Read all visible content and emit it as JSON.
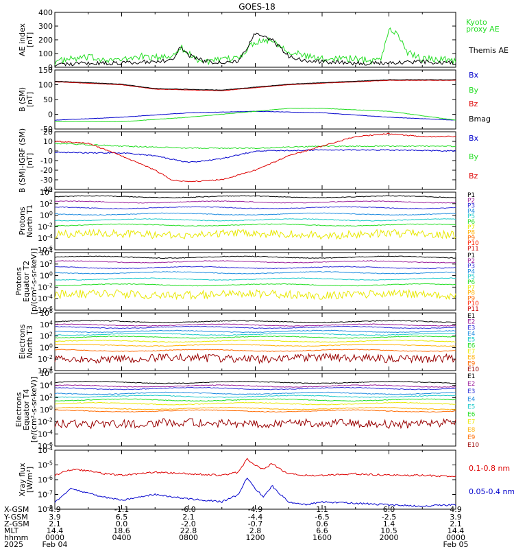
{
  "title": "GOES-18",
  "colors": {
    "axis": "#000000",
    "green": "#22dd22",
    "blue": "#0000cc",
    "red": "#dd0000",
    "black": "#000000"
  },
  "chart_data": [
    {
      "type": "line",
      "panel": "ae_index",
      "ylabel": [
        "AE index",
        "[nT]"
      ],
      "ylim": [
        0,
        400
      ],
      "yticks": [
        "400",
        "300",
        "200",
        "100",
        "0"
      ],
      "legend": [
        {
          "name": "Kyoto proxy AE",
          "lines": [
            "Kyoto",
            "proxy AE"
          ],
          "color": "#22dd22"
        },
        {
          "name": "Themis AE",
          "lines": [
            "Themis AE"
          ],
          "color": "#000000"
        }
      ],
      "series": [
        {
          "name": "Kyoto proxy AE",
          "color": "#22dd22",
          "x": [
            0,
            1,
            2,
            3,
            4,
            5,
            6,
            7,
            7.5,
            8,
            8.5,
            9,
            10,
            11,
            12,
            13,
            14,
            15,
            16,
            17,
            18,
            19,
            19.5,
            20,
            20.5,
            21,
            22,
            23,
            24
          ],
          "y": [
            40,
            60,
            70,
            60,
            50,
            80,
            70,
            80,
            150,
            100,
            60,
            40,
            50,
            70,
            190,
            200,
            120,
            80,
            60,
            70,
            60,
            50,
            60,
            270,
            250,
            120,
            60,
            60,
            50
          ],
          "jitter": 25
        },
        {
          "name": "Themis AE",
          "color": "#000000",
          "x": [
            0,
            2,
            4,
            5,
            6,
            7,
            7.5,
            8,
            9,
            10,
            11,
            12,
            13,
            14,
            15,
            16,
            18,
            20,
            22,
            24
          ],
          "y": [
            20,
            30,
            30,
            40,
            40,
            50,
            140,
            90,
            40,
            40,
            40,
            250,
            200,
            80,
            50,
            40,
            30,
            30,
            40,
            30
          ],
          "jitter": 15
        }
      ]
    },
    {
      "type": "line",
      "panel": "b_sm",
      "ylabel": [
        "B (SM)",
        "[nT]"
      ],
      "ylim": [
        -50,
        150
      ],
      "yticks": [
        "150",
        "100",
        "50",
        "0",
        "-50"
      ],
      "legend": [
        {
          "name": "Bx",
          "color": "#0000cc"
        },
        {
          "name": "By",
          "color": "#22dd22"
        },
        {
          "name": "Bz",
          "color": "#dd0000"
        },
        {
          "name": "Bmag",
          "color": "#000000"
        }
      ],
      "series": [
        {
          "name": "Bx",
          "color": "#0000cc",
          "x": [
            0,
            4,
            8,
            12,
            16,
            20,
            24
          ],
          "y": [
            -20,
            -10,
            5,
            10,
            5,
            -10,
            -20
          ]
        },
        {
          "name": "By",
          "color": "#22dd22",
          "x": [
            0,
            4,
            8,
            12,
            14,
            16,
            20,
            24
          ],
          "y": [
            -25,
            -25,
            -10,
            10,
            20,
            20,
            10,
            -20
          ]
        },
        {
          "name": "Bz",
          "color": "#dd0000",
          "x": [
            0,
            4,
            6,
            10,
            14,
            18,
            20,
            24
          ],
          "y": [
            110,
            100,
            85,
            80,
            100,
            110,
            115,
            115
          ]
        },
        {
          "name": "Bmag",
          "color": "#000000",
          "x": [
            0,
            4,
            6,
            10,
            14,
            18,
            20,
            24
          ],
          "y": [
            112,
            102,
            87,
            82,
            102,
            112,
            117,
            117
          ]
        }
      ]
    },
    {
      "type": "line",
      "panel": "b_minus_igrf",
      "ylabel": [
        "B (SM)-IGRF (SM)",
        "[nT]"
      ],
      "ylim": [
        -40,
        20
      ],
      "yticks": [
        "20",
        "10",
        "0",
        "-10",
        "-20",
        "-30",
        "-40"
      ],
      "legend": [
        {
          "name": "Bx",
          "color": "#0000cc"
        },
        {
          "name": "By",
          "color": "#22dd22"
        },
        {
          "name": "Bz",
          "color": "#dd0000"
        }
      ],
      "series": [
        {
          "name": "Bx",
          "color": "#0000cc",
          "x": [
            0,
            2,
            4,
            6,
            8,
            10,
            12,
            16,
            20,
            24
          ],
          "y": [
            -1,
            -2,
            -2,
            -5,
            -12,
            -8,
            0,
            1,
            1,
            0
          ]
        },
        {
          "name": "By",
          "color": "#22dd22",
          "x": [
            0,
            4,
            8,
            12,
            16,
            20,
            24
          ],
          "y": [
            8,
            5,
            3,
            3,
            5,
            5,
            5
          ]
        },
        {
          "name": "Bz",
          "color": "#dd0000",
          "x": [
            0,
            2,
            4,
            6,
            7,
            8,
            10,
            12,
            14,
            16,
            18,
            20,
            22,
            24
          ],
          "y": [
            10,
            8,
            -5,
            -20,
            -30,
            -32,
            -30,
            -20,
            -5,
            5,
            15,
            18,
            15,
            15
          ]
        }
      ]
    },
    {
      "type": "line",
      "panel": "protons_t1",
      "ylabel": [
        "Protons",
        "North T1"
      ],
      "log": true,
      "ylim_exp": [
        -6,
        4
      ],
      "yticks": [
        "10^4",
        "10^2",
        "10^0",
        "10^-2",
        "10^-4",
        "10^-6"
      ],
      "legend": [
        "P1",
        "P2",
        "P3",
        "P4",
        "P5",
        "P6",
        "P7",
        "P8",
        "P9",
        "P10",
        "P11"
      ],
      "series": [
        {
          "name": "P1",
          "color": "#000000",
          "exp": 3.2
        },
        {
          "name": "P2",
          "color": "#9b1f9b",
          "exp": 2.3
        },
        {
          "name": "P3",
          "color": "#2b2bd6",
          "exp": 1.3
        },
        {
          "name": "P4",
          "color": "#1e8be0",
          "exp": 0.2
        },
        {
          "name": "P5",
          "color": "#19c9c9",
          "exp": -0.8
        },
        {
          "name": "P6",
          "color": "#22dd22",
          "exp": -1.7
        },
        {
          "name": "P7",
          "color": "#e8e800",
          "exp": -3.0,
          "noisy": true
        },
        {
          "name": "P8",
          "color": "#ffb000",
          "exp": -99
        },
        {
          "name": "P9",
          "color": "#ff6a00",
          "exp": -99
        },
        {
          "name": "P10",
          "color": "#ff2200",
          "exp": -99
        },
        {
          "name": "P11",
          "color": "#cc0000",
          "exp": -99
        }
      ]
    },
    {
      "type": "line",
      "panel": "protons_t2",
      "ylabel": [
        "Protons",
        "Equator T2",
        "[p/(cm²-s-sr-keV)]"
      ],
      "log": true,
      "ylim_exp": [
        -6,
        4
      ],
      "yticks": [
        "10^4",
        "10^2",
        "10^0",
        "10^-2",
        "10^-4",
        "10^-6"
      ],
      "legend": [
        "P1",
        "P2",
        "P3",
        "P4",
        "P5",
        "P6",
        "P7",
        "P8",
        "P9",
        "P10",
        "P11"
      ],
      "series": [
        {
          "name": "P1",
          "color": "#000000",
          "exp": 3.2
        },
        {
          "name": "P2",
          "color": "#9b1f9b",
          "exp": 2.4
        },
        {
          "name": "P3",
          "color": "#2b2bd6",
          "exp": 1.4
        },
        {
          "name": "P4",
          "color": "#1e8be0",
          "exp": 0.5
        },
        {
          "name": "P5",
          "color": "#19c9c9",
          "exp": -0.6
        },
        {
          "name": "P6",
          "color": "#22dd22",
          "exp": -1.6
        },
        {
          "name": "P7",
          "color": "#e8e800",
          "exp": -3.0,
          "noisy": true
        },
        {
          "name": "P8",
          "color": "#ffb000",
          "exp": -99
        },
        {
          "name": "P9",
          "color": "#ff6a00",
          "exp": -99
        },
        {
          "name": "P10",
          "color": "#ff2200",
          "exp": -99
        },
        {
          "name": "P11",
          "color": "#cc0000",
          "exp": -99
        }
      ]
    },
    {
      "type": "line",
      "panel": "electrons_t3",
      "ylabel": [
        "Electrons",
        "North T3"
      ],
      "log": true,
      "ylim_exp": [
        -4,
        6
      ],
      "yticks": [
        "10^6",
        "10^4",
        "10^2",
        "10^0",
        "10^-2",
        "10^-4"
      ],
      "legend": [
        "E1",
        "E2",
        "E3",
        "E4",
        "E5",
        "E6",
        "E7",
        "E8",
        "E9",
        "E10"
      ],
      "series": [
        {
          "name": "E1",
          "color": "#000000",
          "exp": 4.5
        },
        {
          "name": "E2",
          "color": "#9b1f9b",
          "exp": 3.9
        },
        {
          "name": "E3",
          "color": "#2b2bd6",
          "exp": 3.5
        },
        {
          "name": "E4",
          "color": "#1e8be0",
          "exp": 2.8
        },
        {
          "name": "E5",
          "color": "#19c9c9",
          "exp": 2.3
        },
        {
          "name": "E6",
          "color": "#22dd22",
          "exp": 1.8
        },
        {
          "name": "E7",
          "color": "#e8e800",
          "exp": 1.1
        },
        {
          "name": "E8",
          "color": "#ffb000",
          "exp": 0.4
        },
        {
          "name": "E9",
          "color": "#ff6a00",
          "exp": -0.5
        },
        {
          "name": "E10",
          "color": "#990000",
          "exp": -1.6,
          "noisy": true
        }
      ]
    },
    {
      "type": "line",
      "panel": "electrons_t4",
      "ylabel": [
        "Electrons",
        "Equator T4",
        "[e/(cm²-s-sr-keV)]"
      ],
      "log": true,
      "ylim_exp": [
        -6,
        6
      ],
      "yticks": [
        "10^6",
        "10^4",
        "10^2",
        "10^0",
        "10^-2",
        "10^-4",
        "10^-6"
      ],
      "legend": [
        "E1",
        "E2",
        "E3",
        "E4",
        "E5",
        "E6",
        "E7",
        "E8",
        "E9",
        "E10"
      ],
      "series": [
        {
          "name": "E1",
          "color": "#000000",
          "exp": 4.5
        },
        {
          "name": "E2",
          "color": "#9b1f9b",
          "exp": 3.9
        },
        {
          "name": "E3",
          "color": "#2b2bd6",
          "exp": 3.5
        },
        {
          "name": "E4",
          "color": "#1e8be0",
          "exp": 2.7
        },
        {
          "name": "E5",
          "color": "#19c9c9",
          "exp": 2.2
        },
        {
          "name": "E6",
          "color": "#22dd22",
          "exp": 1.6
        },
        {
          "name": "E7",
          "color": "#e8e800",
          "exp": 1.0
        },
        {
          "name": "E8",
          "color": "#ffb000",
          "exp": 0.2
        },
        {
          "name": "E9",
          "color": "#ff6a00",
          "exp": -0.2
        },
        {
          "name": "E10",
          "color": "#990000",
          "exp": -2.0,
          "noisy": true
        }
      ]
    },
    {
      "type": "line",
      "panel": "xray",
      "ylabel": [
        "Xray flux",
        "[W/m²]"
      ],
      "log": true,
      "ylim_exp": [
        -8,
        -4
      ],
      "yticks": [
        "10^-4",
        "10^-5",
        "10^-6",
        "10^-7",
        "10^-8"
      ],
      "legend": [
        {
          "name": "0.1-0.8 nm",
          "color": "#dd0000"
        },
        {
          "name": "0.05-0.4 nm",
          "color": "#0000cc"
        }
      ],
      "series": [
        {
          "name": "0.1-0.8 nm",
          "color": "#dd0000",
          "x": [
            0,
            1,
            2,
            3,
            4,
            5,
            6,
            8,
            10,
            11,
            11.5,
            12,
            12.5,
            13,
            13.5,
            14,
            15,
            16,
            18,
            20,
            22,
            24
          ],
          "y": [
            -5.7,
            -5.3,
            -5.4,
            -5.6,
            -5.7,
            -5.6,
            -5.5,
            -5.6,
            -5.7,
            -5.5,
            -4.6,
            -5.0,
            -5.3,
            -4.9,
            -5.3,
            -5.6,
            -5.7,
            -5.7,
            -5.6,
            -5.7,
            -5.7,
            -5.8
          ]
        },
        {
          "name": "0.05-0.4 nm",
          "color": "#0000cc",
          "x": [
            0,
            1,
            2,
            3,
            4,
            5,
            6,
            8,
            10,
            11,
            11.5,
            12,
            12.5,
            13,
            13.5,
            14,
            15,
            16,
            18,
            20,
            22,
            24
          ],
          "y": [
            -7.5,
            -6.6,
            -6.9,
            -7.2,
            -7.4,
            -7.2,
            -7.0,
            -7.3,
            -7.5,
            -7.0,
            -5.9,
            -6.6,
            -7.2,
            -6.4,
            -7.0,
            -7.5,
            -7.7,
            -7.5,
            -7.6,
            -7.7,
            -7.8,
            -7.7
          ]
        }
      ]
    }
  ],
  "ephemeris": {
    "labels": [
      "X-GSM",
      "Y-GSM",
      "Z-GSM",
      "MLT",
      "hhmm"
    ],
    "columns": [
      [
        "4.9",
        "3.9",
        "2.1",
        "14.4",
        "0000"
      ],
      [
        "-1.1",
        "6.5",
        "0.0",
        "18.6",
        "0400"
      ],
      [
        "-6.0",
        "2.1",
        "-2.0",
        "22.8",
        "0800"
      ],
      [
        "-4.9",
        "-4.4",
        "-0.7",
        "2.8",
        "1200"
      ],
      [
        "1.1",
        "-6.5",
        "0.6",
        "6.6",
        "1600"
      ],
      [
        "6.0",
        "-2.5",
        "1.4",
        "10.5",
        "2000"
      ],
      [
        "4.9",
        "3.9",
        "2.1",
        "14.4",
        "0000"
      ]
    ],
    "year": "2025",
    "date_start": "Feb 04",
    "date_end": "Feb 05"
  }
}
